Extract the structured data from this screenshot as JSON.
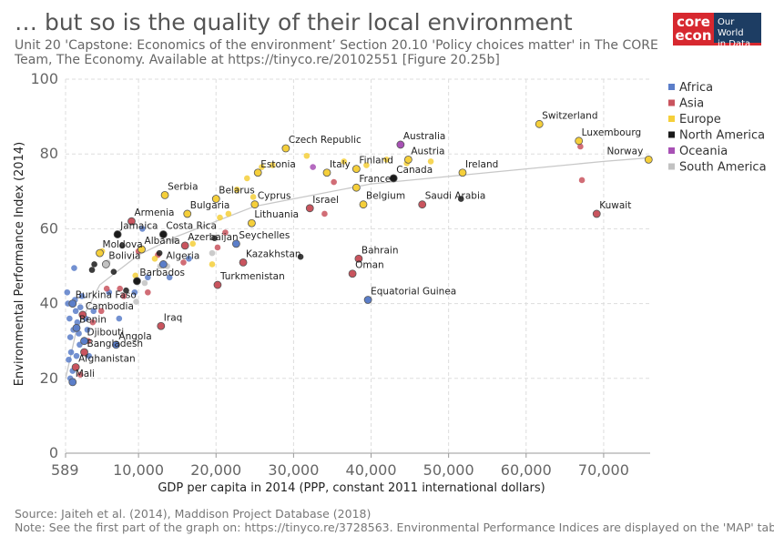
{
  "header": {
    "title": "… but so is the quality of their local environment",
    "subtitle": "Unit 20 'Capstone: Economics of the environment’ Section 20.10 'Policy choices matter' in The CORE Team, The Economy. Available at https://tinyco.re/20102551 [Figure 20.25b]"
  },
  "logo": {
    "core_line1": "core",
    "core_line2": "econ",
    "owid_line1": "Our World",
    "owid_line2": "in Data"
  },
  "footer": {
    "source": "Source: Jaiteh et al. (2014), Maddison Project Database (2018)",
    "note": "Note: See the first part of the graph on: https://tinyco.re/3728563. Environmental Performance Indices are displayed on the 'MAP' tab"
  },
  "colors": {
    "Africa": "#5b7ec9",
    "Asia": "#c9545e",
    "Europe": "#f5cf3a",
    "North America": "#1a1a1a",
    "Oceania": "#a851b5",
    "South America": "#c2c2c2"
  },
  "chart_data": {
    "type": "scatter",
    "xlabel": "GDP per capita in 2014 (PPP, constant 2011 international dollars)",
    "ylabel": "Environmental Performance Index (2014)",
    "xlim": [
      589,
      76000
    ],
    "ylim": [
      0,
      100
    ],
    "x_ticks": [
      589,
      10000,
      20000,
      30000,
      40000,
      50000,
      60000,
      70000
    ],
    "x_tick_labels": [
      "589",
      "10,000",
      "20,000",
      "30,000",
      "40,000",
      "50,000",
      "60,000",
      "70,000"
    ],
    "y_ticks": [
      0,
      20,
      40,
      60,
      80,
      100
    ],
    "y_tick_labels": [
      "0",
      "20",
      "40",
      "60",
      "80",
      "100"
    ],
    "grid": true,
    "legend_position": "top-right",
    "legend": [
      "Africa",
      "Asia",
      "Europe",
      "North America",
      "Oceania",
      "South America"
    ],
    "trend": [
      [
        600,
        20
      ],
      [
        2000,
        33
      ],
      [
        5000,
        45
      ],
      [
        10000,
        53
      ],
      [
        15000,
        58
      ],
      [
        20000,
        62
      ],
      [
        25000,
        66
      ],
      [
        30000,
        68
      ],
      [
        40000,
        72
      ],
      [
        50000,
        74
      ],
      [
        60000,
        76
      ],
      [
        70000,
        78
      ],
      [
        76000,
        79
      ]
    ],
    "labeled_points": [
      {
        "name": "Switzerland",
        "x": 61700,
        "y": 88,
        "region": "Europe"
      },
      {
        "name": "Luxembourg",
        "x": 66800,
        "y": 83.5,
        "region": "Europe"
      },
      {
        "name": "Norway",
        "x": 75800,
        "y": 78.5,
        "region": "Europe"
      },
      {
        "name": "Australia",
        "x": 43800,
        "y": 82.5,
        "region": "Oceania"
      },
      {
        "name": "Austria",
        "x": 44800,
        "y": 78.5,
        "region": "Europe"
      },
      {
        "name": "Ireland",
        "x": 51800,
        "y": 75,
        "region": "Europe"
      },
      {
        "name": "Czech Republic",
        "x": 29000,
        "y": 81.5,
        "region": "Europe"
      },
      {
        "name": "Finland",
        "x": 38100,
        "y": 76,
        "region": "Europe"
      },
      {
        "name": "Canada",
        "x": 42900,
        "y": 73.5,
        "region": "North America"
      },
      {
        "name": "Estonia",
        "x": 25400,
        "y": 75,
        "region": "Europe"
      },
      {
        "name": "Italy",
        "x": 34300,
        "y": 75,
        "region": "Europe"
      },
      {
        "name": "France",
        "x": 38100,
        "y": 71,
        "region": "Europe"
      },
      {
        "name": "Serbia",
        "x": 13400,
        "y": 69,
        "region": "Europe"
      },
      {
        "name": "Belarus",
        "x": 20000,
        "y": 68,
        "region": "Europe"
      },
      {
        "name": "Cyprus",
        "x": 25000,
        "y": 66.5,
        "region": "Europe"
      },
      {
        "name": "Israel",
        "x": 32100,
        "y": 65.5,
        "region": "Asia"
      },
      {
        "name": "Belgium",
        "x": 39000,
        "y": 66.5,
        "region": "Europe"
      },
      {
        "name": "Saudi Arabia",
        "x": 46600,
        "y": 66.5,
        "region": "Asia"
      },
      {
        "name": "Kuwait",
        "x": 69100,
        "y": 64,
        "region": "Asia"
      },
      {
        "name": "Bulgaria",
        "x": 16300,
        "y": 64,
        "region": "Europe"
      },
      {
        "name": "Lithuania",
        "x": 24600,
        "y": 61.5,
        "region": "Europe"
      },
      {
        "name": "Armenia",
        "x": 9100,
        "y": 62,
        "region": "Asia"
      },
      {
        "name": "Jamaica",
        "x": 7300,
        "y": 58.5,
        "region": "North America"
      },
      {
        "name": "Costa Rica",
        "x": 13200,
        "y": 58.5,
        "region": "North America"
      },
      {
        "name": "Seychelles",
        "x": 22600,
        "y": 56,
        "region": "Africa"
      },
      {
        "name": "Azerbaijan",
        "x": 16000,
        "y": 55.5,
        "region": "Asia"
      },
      {
        "name": "Moldova",
        "x": 5000,
        "y": 53.5,
        "region": "Europe"
      },
      {
        "name": "Albania",
        "x": 10400,
        "y": 54.5,
        "region": "Europe"
      },
      {
        "name": "Bolivia",
        "x": 5800,
        "y": 50.5,
        "region": "South America"
      },
      {
        "name": "Algeria",
        "x": 13200,
        "y": 50.5,
        "region": "Africa"
      },
      {
        "name": "Kazakhstan",
        "x": 23500,
        "y": 51,
        "region": "Asia"
      },
      {
        "name": "Bahrain",
        "x": 38400,
        "y": 52,
        "region": "Asia"
      },
      {
        "name": "Oman",
        "x": 37600,
        "y": 48,
        "region": "Asia"
      },
      {
        "name": "Barbados",
        "x": 9800,
        "y": 46,
        "region": "North America"
      },
      {
        "name": "Turkmenistan",
        "x": 20200,
        "y": 45,
        "region": "Asia"
      },
      {
        "name": "Equatorial Guinea",
        "x": 39600,
        "y": 41,
        "region": "Africa"
      },
      {
        "name": "Burkina Faso",
        "x": 1500,
        "y": 40,
        "region": "Africa"
      },
      {
        "name": "Cambodia",
        "x": 2800,
        "y": 37,
        "region": "Asia"
      },
      {
        "name": "Benin",
        "x": 2000,
        "y": 33.5,
        "region": "Africa"
      },
      {
        "name": "Iraq",
        "x": 12900,
        "y": 34,
        "region": "Asia"
      },
      {
        "name": "Djibouti",
        "x": 3000,
        "y": 30,
        "region": "Africa"
      },
      {
        "name": "Angola",
        "x": 7100,
        "y": 29,
        "region": "Africa"
      },
      {
        "name": "Bangladesh",
        "x": 3000,
        "y": 27,
        "region": "Asia"
      },
      {
        "name": "Afghanistan",
        "x": 1900,
        "y": 23,
        "region": "Asia"
      },
      {
        "name": "Mali",
        "x": 1500,
        "y": 19,
        "region": "Africa"
      }
    ],
    "unlabeled_points": [
      {
        "x": 800,
        "y": 43,
        "region": "Africa"
      },
      {
        "x": 900,
        "y": 40,
        "region": "Africa"
      },
      {
        "x": 1100,
        "y": 36,
        "region": "Africa"
      },
      {
        "x": 1200,
        "y": 31,
        "region": "Africa"
      },
      {
        "x": 1300,
        "y": 27,
        "region": "Africa"
      },
      {
        "x": 1000,
        "y": 25,
        "region": "Africa"
      },
      {
        "x": 1700,
        "y": 49.5,
        "region": "Africa"
      },
      {
        "x": 1800,
        "y": 41,
        "region": "Africa"
      },
      {
        "x": 1900,
        "y": 38,
        "region": "Africa"
      },
      {
        "x": 2100,
        "y": 35,
        "region": "Africa"
      },
      {
        "x": 2300,
        "y": 32,
        "region": "Africa"
      },
      {
        "x": 2400,
        "y": 29,
        "region": "Africa"
      },
      {
        "x": 2500,
        "y": 39,
        "region": "Africa"
      },
      {
        "x": 2700,
        "y": 42,
        "region": "Africa"
      },
      {
        "x": 3200,
        "y": 36,
        "region": "Africa"
      },
      {
        "x": 3400,
        "y": 33,
        "region": "Africa"
      },
      {
        "x": 3600,
        "y": 26,
        "region": "Africa"
      },
      {
        "x": 1500,
        "y": 22,
        "region": "Africa"
      },
      {
        "x": 1200,
        "y": 20,
        "region": "Africa"
      },
      {
        "x": 1600,
        "y": 33,
        "region": "Africa"
      },
      {
        "x": 2000,
        "y": 26,
        "region": "Africa"
      },
      {
        "x": 4200,
        "y": 38,
        "region": "Africa"
      },
      {
        "x": 6200,
        "y": 43,
        "region": "Africa"
      },
      {
        "x": 7500,
        "y": 36,
        "region": "Africa"
      },
      {
        "x": 9500,
        "y": 43,
        "region": "Africa"
      },
      {
        "x": 10500,
        "y": 60,
        "region": "Africa"
      },
      {
        "x": 11200,
        "y": 47,
        "region": "Africa"
      },
      {
        "x": 14000,
        "y": 47,
        "region": "Africa"
      },
      {
        "x": 16500,
        "y": 52,
        "region": "Africa"
      },
      {
        "x": 3500,
        "y": 30,
        "region": "Asia"
      },
      {
        "x": 4100,
        "y": 35,
        "region": "Asia"
      },
      {
        "x": 5200,
        "y": 38,
        "region": "Asia"
      },
      {
        "x": 5900,
        "y": 44,
        "region": "Asia"
      },
      {
        "x": 7600,
        "y": 44,
        "region": "Asia"
      },
      {
        "x": 8100,
        "y": 42,
        "region": "Asia"
      },
      {
        "x": 10000,
        "y": 54,
        "region": "Asia"
      },
      {
        "x": 11200,
        "y": 43,
        "region": "Asia"
      },
      {
        "x": 12500,
        "y": 53,
        "region": "Asia"
      },
      {
        "x": 15800,
        "y": 51,
        "region": "Asia"
      },
      {
        "x": 20200,
        "y": 55,
        "region": "Asia"
      },
      {
        "x": 21200,
        "y": 59,
        "region": "Asia"
      },
      {
        "x": 34000,
        "y": 64,
        "region": "Asia"
      },
      {
        "x": 35200,
        "y": 72.5,
        "region": "Asia"
      },
      {
        "x": 67200,
        "y": 73,
        "region": "Asia"
      },
      {
        "x": 67000,
        "y": 82,
        "region": "Asia"
      },
      {
        "x": 2500,
        "y": 21,
        "region": "Asia"
      },
      {
        "x": 5300,
        "y": 54,
        "region": "Europe"
      },
      {
        "x": 9600,
        "y": 47.5,
        "region": "Europe"
      },
      {
        "x": 12100,
        "y": 52,
        "region": "Europe"
      },
      {
        "x": 17000,
        "y": 56,
        "region": "Europe"
      },
      {
        "x": 19500,
        "y": 50.5,
        "region": "Europe"
      },
      {
        "x": 20500,
        "y": 63,
        "region": "Europe"
      },
      {
        "x": 21600,
        "y": 64,
        "region": "Europe"
      },
      {
        "x": 22700,
        "y": 70.5,
        "region": "Europe"
      },
      {
        "x": 24000,
        "y": 73.5,
        "region": "Europe"
      },
      {
        "x": 24800,
        "y": 68.5,
        "region": "Europe"
      },
      {
        "x": 25900,
        "y": 76.5,
        "region": "Europe"
      },
      {
        "x": 27300,
        "y": 77,
        "region": "Europe"
      },
      {
        "x": 31700,
        "y": 79.5,
        "region": "Europe"
      },
      {
        "x": 36500,
        "y": 78,
        "region": "Europe"
      },
      {
        "x": 39400,
        "y": 77,
        "region": "Europe"
      },
      {
        "x": 42000,
        "y": 78.5,
        "region": "Europe"
      },
      {
        "x": 47700,
        "y": 78,
        "region": "Europe"
      },
      {
        "x": 44600,
        "y": 77.5,
        "region": "Europe"
      },
      {
        "x": 4000,
        "y": 49,
        "region": "North America"
      },
      {
        "x": 4300,
        "y": 50.5,
        "region": "North America"
      },
      {
        "x": 6800,
        "y": 48.5,
        "region": "North America"
      },
      {
        "x": 7900,
        "y": 55.5,
        "region": "North America"
      },
      {
        "x": 8400,
        "y": 43.5,
        "region": "North America"
      },
      {
        "x": 12700,
        "y": 53.5,
        "region": "North America"
      },
      {
        "x": 19800,
        "y": 57.5,
        "region": "North America"
      },
      {
        "x": 30900,
        "y": 52.5,
        "region": "North America"
      },
      {
        "x": 51600,
        "y": 68,
        "region": "North America"
      },
      {
        "x": 32500,
        "y": 76.5,
        "region": "Oceania"
      },
      {
        "x": 6000,
        "y": 51,
        "region": "South America"
      },
      {
        "x": 10800,
        "y": 45.5,
        "region": "South America"
      },
      {
        "x": 12800,
        "y": 50,
        "region": "South America"
      },
      {
        "x": 13700,
        "y": 50,
        "region": "South America"
      },
      {
        "x": 16000,
        "y": 55.5,
        "region": "South America"
      },
      {
        "x": 19500,
        "y": 53.5,
        "region": "South America"
      },
      {
        "x": 14600,
        "y": 57,
        "region": "South America"
      },
      {
        "x": 9700,
        "y": 40.5,
        "region": "South America"
      }
    ]
  }
}
